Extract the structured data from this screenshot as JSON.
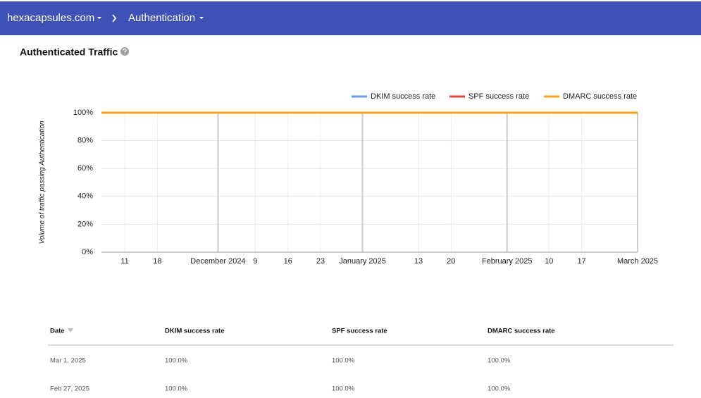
{
  "header": {
    "domain": "hexacapsules.com",
    "section": "Authentication"
  },
  "chart_data": {
    "type": "line",
    "title": "Authenticated Traffic",
    "y_label": "Volume of traffic passing Authentication",
    "x": [
      "2024-11-06",
      "2024-12-01",
      "2025-01-01",
      "2025-02-01",
      "2025-03-01"
    ],
    "series": [
      {
        "name": "DKIM success rate",
        "color": "#6d9eeb",
        "values": [
          100,
          100,
          100,
          100,
          100
        ]
      },
      {
        "name": "SPF success rate",
        "color": "#db4437",
        "values": [
          100,
          100,
          100,
          100,
          100
        ]
      },
      {
        "name": "DMARC success rate",
        "color": "#f4a321",
        "values": [
          100,
          100,
          100,
          100,
          100
        ]
      }
    ],
    "xlim": [
      "2024-11-06",
      "2025-03-01"
    ],
    "xticks": [
      {
        "value": "2024-11-11",
        "label": "11"
      },
      {
        "value": "2024-11-18",
        "label": "18"
      },
      {
        "value": "2024-12-01",
        "label": "December 2024"
      },
      {
        "value": "2024-12-09",
        "label": "9"
      },
      {
        "value": "2024-12-16",
        "label": "16"
      },
      {
        "value": "2024-12-23",
        "label": "23"
      },
      {
        "value": "2025-01-01",
        "label": "January 2025"
      },
      {
        "value": "2025-01-13",
        "label": "13"
      },
      {
        "value": "2025-01-20",
        "label": "20"
      },
      {
        "value": "2025-02-01",
        "label": "February 2025"
      },
      {
        "value": "2025-02-10",
        "label": "10"
      },
      {
        "value": "2025-02-17",
        "label": "17"
      },
      {
        "value": "2025-03-01",
        "label": "March 2025"
      }
    ],
    "ylim": [
      0,
      100
    ],
    "yticks": [
      {
        "value": 0,
        "label": "0%"
      },
      {
        "value": 20,
        "label": "20%"
      },
      {
        "value": 40,
        "label": "40%"
      },
      {
        "value": 60,
        "label": "60%"
      },
      {
        "value": 80,
        "label": "80%"
      },
      {
        "value": 100,
        "label": "100%"
      }
    ],
    "grid": true,
    "legend": "top-right"
  },
  "table": {
    "columns": [
      "Date",
      "DKIM success rate",
      "SPF success rate",
      "DMARC success rate"
    ],
    "rows": [
      [
        "Mar 1, 2025",
        "100.0%",
        "100.0%",
        "100.0%"
      ],
      [
        "Feb 27, 2025",
        "100.0%",
        "100.0%",
        "100.0%"
      ]
    ]
  }
}
